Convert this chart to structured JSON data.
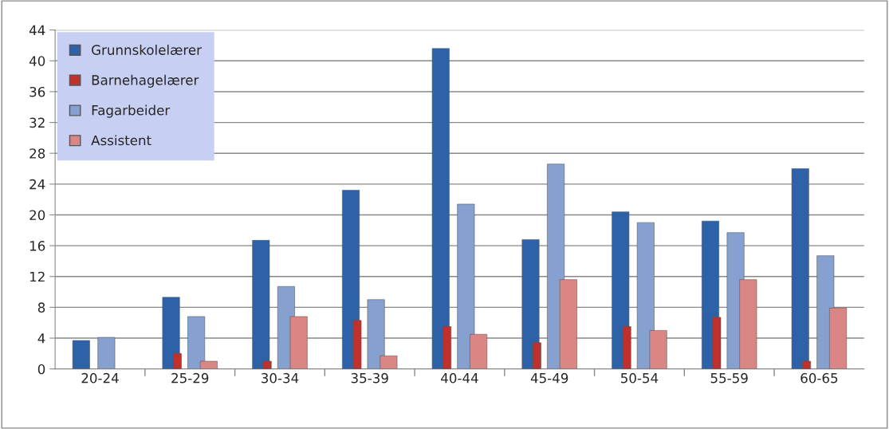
{
  "chart_data": {
    "type": "bar",
    "categories": [
      "20-24",
      "25-29",
      "30-34",
      "35-39",
      "40-44",
      "45-49",
      "50-54",
      "55-59",
      "60-65"
    ],
    "series": [
      {
        "name": "Grunnskolelærer",
        "color": "#2e62a8",
        "values": [
          3.7,
          9.3,
          16.7,
          23.2,
          41.6,
          16.8,
          20.4,
          19.2,
          26
        ]
      },
      {
        "name": "Barnehagelærer",
        "color": "#c0302c",
        "values": [
          null,
          2,
          1,
          6.3,
          5.5,
          3.4,
          5.5,
          6.7,
          1
        ]
      },
      {
        "name": "Fagarbeider",
        "color": "#86a0d0",
        "values": [
          4.1,
          6.8,
          10.7,
          9,
          21.4,
          26.6,
          19,
          17.7,
          14.7
        ]
      },
      {
        "name": "Assistent",
        "color": "#d98684",
        "values": [
          null,
          1,
          6.8,
          1.7,
          4.5,
          11.6,
          5,
          11.6,
          7.9
        ]
      }
    ],
    "ylim": [
      0,
      44
    ],
    "yticks": [
      0,
      4,
      8,
      12,
      16,
      20,
      24,
      28,
      32,
      36,
      40,
      44
    ],
    "grid": "y",
    "legend": "top left"
  }
}
